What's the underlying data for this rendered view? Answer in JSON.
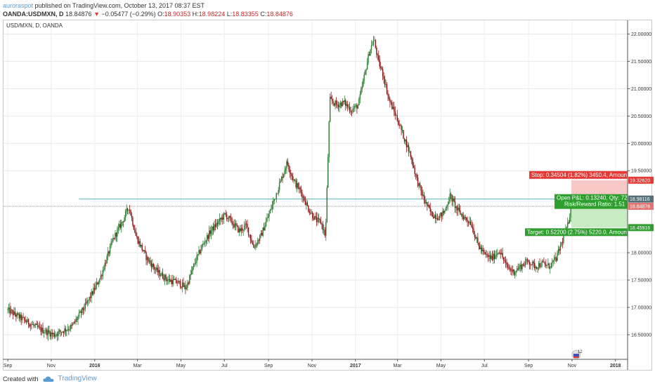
{
  "header": {
    "author": "auroraspot",
    "published": "published on TradingView.com, October 13, 2017 08:37 EST"
  },
  "ohlc": {
    "symbol": "OANDA:USDMXN, D",
    "last": "18.84876",
    "arrow": "▼",
    "change": "−0.05477 (−0.29%)",
    "o_label": "O:",
    "o": "18.90353",
    "h_label": "H:",
    "h": "18.98224",
    "l_label": "L:",
    "l": "18.83355",
    "c_label": "C:",
    "c": "18.84876"
  },
  "chart_title": "USD/MXN, D, OANDA",
  "footer": {
    "created_with": "Created with",
    "brand": "TradingView"
  },
  "colors": {
    "up": "#2e7d32",
    "down": "#8b1a1a",
    "stop_bg": "#f8c7c7",
    "target_bg": "#c8ebc3",
    "stop_label": "#e53935",
    "target_label": "#2e9e2e",
    "teal_line": "#5fb3a8",
    "red_line": "#e57373"
  },
  "chart_data": {
    "type": "candlestick",
    "title": "USD/MXN, D, OANDA",
    "y_range": [
      16.05,
      22.25
    ],
    "y_ticks": [
      {
        "value": 16.5,
        "label": "16.50000"
      },
      {
        "value": 17.0,
        "label": "17.00000"
      },
      {
        "value": 17.5,
        "label": "17.50000"
      },
      {
        "value": 18.0,
        "label": "18.00000"
      },
      {
        "value": 19.5,
        "label": "19.50000"
      },
      {
        "value": 20.0,
        "label": "20.00000"
      },
      {
        "value": 20.5,
        "label": "20.50000"
      },
      {
        "value": 21.0,
        "label": "21.00000"
      },
      {
        "value": 21.5,
        "label": "21.50000"
      },
      {
        "value": 22.0,
        "label": "22.00000"
      }
    ],
    "x_ticks": [
      {
        "label": "Sep",
        "day": 0,
        "bold": false
      },
      {
        "label": "Nov",
        "day": 61,
        "bold": false
      },
      {
        "label": "2016",
        "day": 122,
        "bold": true
      },
      {
        "label": "Mar",
        "day": 182,
        "bold": false
      },
      {
        "label": "May",
        "day": 243,
        "bold": false
      },
      {
        "label": "Jul",
        "day": 304,
        "bold": false
      },
      {
        "label": "Sep",
        "day": 366,
        "bold": false
      },
      {
        "label": "Nov",
        "day": 427,
        "bold": false
      },
      {
        "label": "2017",
        "day": 488,
        "bold": true
      },
      {
        "label": "Mar",
        "day": 547,
        "bold": false
      },
      {
        "label": "May",
        "day": 608,
        "bold": false
      },
      {
        "label": "Jul",
        "day": 669,
        "bold": false
      },
      {
        "label": "Sep",
        "day": 731,
        "bold": false
      },
      {
        "label": "Nov",
        "day": 792,
        "bold": false
      },
      {
        "label": "2018",
        "day": 853,
        "bold": true
      }
    ],
    "x_range_days": [
      -6,
      870
    ],
    "price_path": [
      [
        0,
        16.95
      ],
      [
        25,
        16.75
      ],
      [
        45,
        16.6
      ],
      [
        65,
        16.5
      ],
      [
        90,
        16.65
      ],
      [
        110,
        17.05
      ],
      [
        130,
        17.55
      ],
      [
        148,
        18.25
      ],
      [
        162,
        18.6
      ],
      [
        170,
        18.85
      ],
      [
        180,
        18.3
      ],
      [
        195,
        17.9
      ],
      [
        210,
        17.65
      ],
      [
        225,
        17.5
      ],
      [
        240,
        17.45
      ],
      [
        250,
        17.35
      ],
      [
        262,
        17.8
      ],
      [
        272,
        18.1
      ],
      [
        285,
        18.4
      ],
      [
        295,
        18.55
      ],
      [
        305,
        18.7
      ],
      [
        315,
        18.55
      ],
      [
        325,
        18.4
      ],
      [
        335,
        18.5
      ],
      [
        345,
        18.1
      ],
      [
        355,
        18.3
      ],
      [
        368,
        18.75
      ],
      [
        380,
        19.2
      ],
      [
        392,
        19.65
      ],
      [
        402,
        19.3
      ],
      [
        412,
        19.1
      ],
      [
        422,
        18.8
      ],
      [
        432,
        18.6
      ],
      [
        440,
        18.55
      ],
      [
        446,
        18.3
      ],
      [
        452,
        20.8
      ],
      [
        462,
        20.7
      ],
      [
        472,
        20.75
      ],
      [
        482,
        20.6
      ],
      [
        492,
        20.7
      ],
      [
        500,
        21.2
      ],
      [
        508,
        21.7
      ],
      [
        514,
        21.9
      ],
      [
        520,
        21.5
      ],
      [
        527,
        21.25
      ],
      [
        535,
        20.8
      ],
      [
        545,
        20.5
      ],
      [
        555,
        20.15
      ],
      [
        565,
        19.8
      ],
      [
        575,
        19.3
      ],
      [
        585,
        18.95
      ],
      [
        595,
        18.7
      ],
      [
        605,
        18.65
      ],
      [
        613,
        18.75
      ],
      [
        621,
        19.05
      ],
      [
        630,
        18.8
      ],
      [
        640,
        18.65
      ],
      [
        650,
        18.55
      ],
      [
        660,
        18.15
      ],
      [
        670,
        17.95
      ],
      [
        680,
        17.9
      ],
      [
        690,
        18.05
      ],
      [
        700,
        17.75
      ],
      [
        710,
        17.65
      ],
      [
        720,
        17.75
      ],
      [
        730,
        17.85
      ],
      [
        740,
        17.75
      ],
      [
        750,
        17.8
      ],
      [
        760,
        17.75
      ],
      [
        770,
        17.9
      ],
      [
        778,
        18.2
      ],
      [
        786,
        18.5
      ],
      [
        791,
        18.85
      ]
    ],
    "horizontal_lines": [
      {
        "name": "cyan",
        "value": 18.98116,
        "from_day": 100
      },
      {
        "name": "red",
        "value": 18.84876,
        "from_day": -6
      }
    ],
    "position": {
      "from_day": 791,
      "stop_level": 19.3262,
      "entry_level": 18.84876,
      "current_level": 18.98116,
      "target_level": 18.45916
    },
    "price_labels": {
      "stop": "19.32620",
      "current": "18.98116",
      "last": "18.84876",
      "target": "18.45916"
    },
    "annotations": {
      "stop": "Stop: 0.34504 (1.82%) 3450.4, Amount",
      "open_pnl": "Open P&L: 0.13240, Qty: 72",
      "rr": "Risk/Reward Ratio: 1.51",
      "target": "Target: 0.52200 (2.75%) 5220.0, Amount"
    },
    "event_badge": "12"
  }
}
